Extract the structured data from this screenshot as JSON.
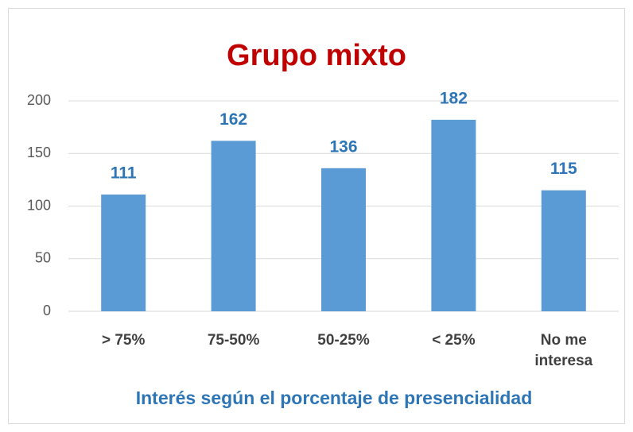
{
  "chart_data": {
    "type": "bar",
    "title": "Grupo mixto",
    "x_label": "Interés según el porcentaje de presencialidad",
    "categories": [
      "> 75%",
      "75-50%",
      "50-25%",
      "< 25%",
      "No me interesa"
    ],
    "values": [
      111,
      162,
      136,
      182,
      115
    ],
    "color": "#5b9bd5",
    "ylim": [
      0,
      200
    ],
    "yticks": [
      0,
      50,
      100,
      150,
      200
    ],
    "grid": true
  }
}
